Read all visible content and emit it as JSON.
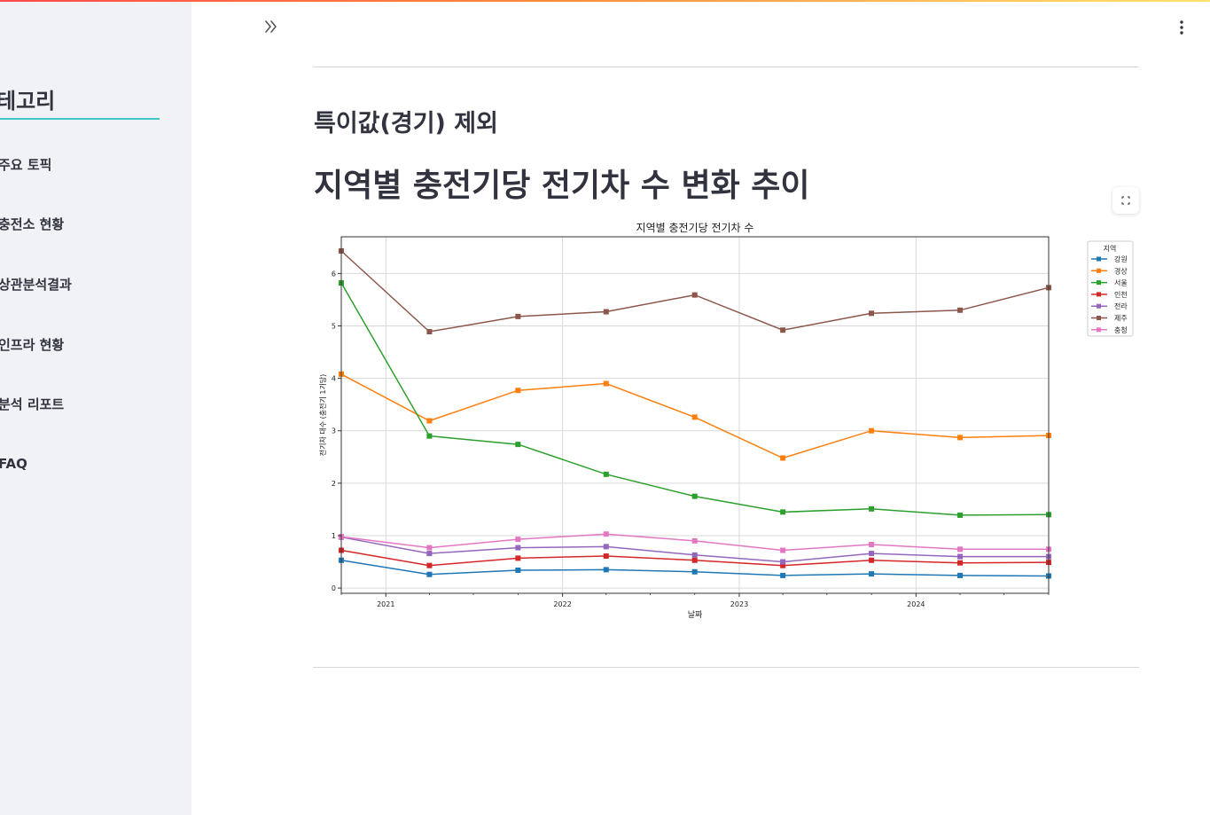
{
  "sidebar": {
    "title": "테고리",
    "items": [
      {
        "label": "주요 토픽"
      },
      {
        "label": "충전소 현황"
      },
      {
        "label": "상관분석결과"
      },
      {
        "label": "인프라 현황"
      },
      {
        "label": "분석 리포트"
      },
      {
        "label": "FAQ"
      }
    ]
  },
  "main": {
    "subheader": "특이값(경기) 제외",
    "header": "지역별 충전기당 전기차 수 변화 추이"
  },
  "colors": {
    "accent_underline": "#3ec8c4",
    "sidebar_bg": "#f0f2f6",
    "text": "#31333f"
  },
  "chart_data": {
    "type": "line",
    "title": "지역별 충전기당 전기차 수",
    "xlabel": "날짜",
    "ylabel": "전기차 대수 (충전기 1기당)",
    "x": [
      "2020-10",
      "2021-04",
      "2021-10",
      "2022-04",
      "2022-10",
      "2023-04",
      "2023-10",
      "2024-04",
      "2024-10"
    ],
    "xticks": [
      "2021",
      "2022",
      "2023",
      "2024"
    ],
    "yticks": [
      "0",
      "1",
      "2",
      "3",
      "4",
      "5",
      "6"
    ],
    "ylim": [
      -0.1,
      6.7
    ],
    "grid": true,
    "legend": {
      "title": "지역",
      "placement": "right, outside plot"
    },
    "series": [
      {
        "name": "강원",
        "color": "#1f77b4",
        "values": [
          0.53,
          0.26,
          0.34,
          0.35,
          0.31,
          0.24,
          0.27,
          0.24,
          0.23
        ]
      },
      {
        "name": "경상",
        "color": "#ff7f0e",
        "values": [
          4.08,
          3.19,
          3.77,
          3.9,
          3.26,
          2.48,
          3.0,
          2.87,
          2.91
        ]
      },
      {
        "name": "서울",
        "color": "#2ca02c",
        "values": [
          5.82,
          2.9,
          2.74,
          2.17,
          1.75,
          1.45,
          1.51,
          1.39,
          1.4
        ]
      },
      {
        "name": "인천",
        "color": "#d62728",
        "values": [
          0.72,
          0.43,
          0.57,
          0.61,
          0.53,
          0.43,
          0.53,
          0.48,
          0.49
        ]
      },
      {
        "name": "전라",
        "color": "#9467bd",
        "values": [
          0.97,
          0.66,
          0.77,
          0.79,
          0.63,
          0.5,
          0.66,
          0.6,
          0.6
        ]
      },
      {
        "name": "제주",
        "color": "#8c564b",
        "values": [
          6.43,
          4.89,
          5.18,
          5.27,
          5.59,
          4.92,
          5.24,
          5.3,
          5.73
        ]
      },
      {
        "name": "충청",
        "color": "#e377c2",
        "values": [
          0.98,
          0.77,
          0.93,
          1.03,
          0.9,
          0.72,
          0.83,
          0.74,
          0.74
        ]
      }
    ]
  }
}
